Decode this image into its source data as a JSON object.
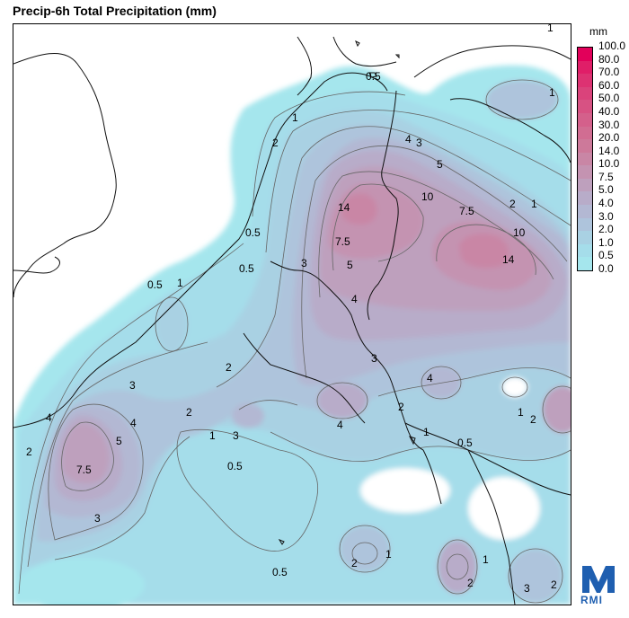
{
  "title": "Precip-6h Total Precipitation (mm)",
  "legend": {
    "unit": "mm",
    "levels": [
      {
        "label": "100.0",
        "color": "#e2005a"
      },
      {
        "label": "80.0",
        "color": "#e01e68"
      },
      {
        "label": "70.0",
        "color": "#dd3272"
      },
      {
        "label": "60.0",
        "color": "#da437b"
      },
      {
        "label": "50.0",
        "color": "#d75283"
      },
      {
        "label": "40.0",
        "color": "#d4608b"
      },
      {
        "label": "30.0",
        "color": "#d16d92"
      },
      {
        "label": "20.0",
        "color": "#cd799a"
      },
      {
        "label": "14.0",
        "color": "#c986a5"
      },
      {
        "label": "10.0",
        "color": "#c493b1"
      },
      {
        "label": "7.5",
        "color": "#bea0bd"
      },
      {
        "label": "5.0",
        "color": "#b8acc9"
      },
      {
        "label": "4.0",
        "color": "#b3b8d3"
      },
      {
        "label": "3.0",
        "color": "#aec4dc"
      },
      {
        "label": "2.0",
        "color": "#a9d1e3"
      },
      {
        "label": "1.0",
        "color": "#a5ddea"
      },
      {
        "label": "0.5",
        "color": "#a5e6ed"
      },
      {
        "label": "0.0",
        "color": "#ffffff"
      }
    ]
  },
  "contour_labels": [
    "0.5",
    "1",
    "1",
    "2",
    "4",
    "3",
    "5",
    "14",
    "7.5",
    "5",
    "4",
    "10",
    "7.5",
    "2",
    "1",
    "10",
    "14",
    "0.5",
    "1",
    "3",
    "2",
    "4",
    "2",
    "3",
    "4",
    "3",
    "4",
    "5",
    "7.5",
    "2",
    "1",
    "3",
    "0.5",
    "1",
    "0.5",
    "2",
    "1",
    "2",
    "3",
    "2",
    "4",
    "1",
    "2",
    "0.5",
    "0.5",
    "1",
    "1",
    "3",
    "2",
    "0.5"
  ],
  "logo": {
    "text": "RMI",
    "colors": {
      "primary": "#1f5fb0"
    }
  }
}
